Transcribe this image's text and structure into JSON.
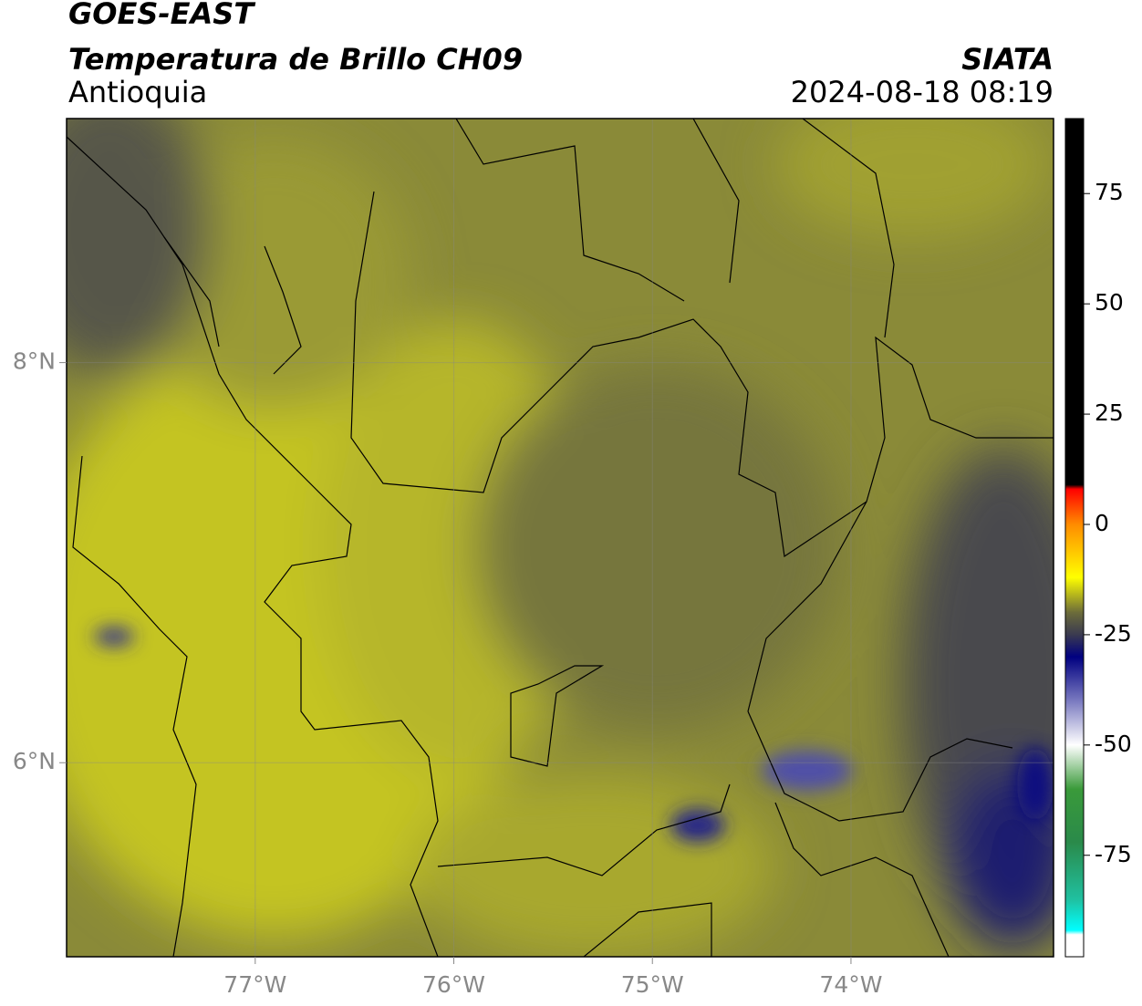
{
  "chart_data": {
    "type": "map",
    "title": "GOES-EAST",
    "subtitle": "Temperatura de Brillo CH09",
    "region": "Antioquia",
    "source": "SIATA",
    "timestamp": "2024-08-18 08:19",
    "xlim": [
      -77.95,
      -72.98
    ],
    "ylim": [
      5.03,
      9.22
    ],
    "xticks": [
      {
        "value": -77,
        "label": "77°W"
      },
      {
        "value": -76,
        "label": "76°W"
      },
      {
        "value": -75,
        "label": "75°W"
      },
      {
        "value": -74,
        "label": "74°W"
      }
    ],
    "yticks": [
      {
        "value": 6,
        "label": "6°N"
      },
      {
        "value": 8,
        "label": "8°N"
      }
    ],
    "grid": true,
    "clim": [
      -98,
      92
    ],
    "cticks": [
      75,
      50,
      25,
      0,
      -25,
      -50,
      -75
    ],
    "colormap": [
      {
        "value": 92,
        "color": "#000000"
      },
      {
        "value": 9,
        "color": "#000000"
      },
      {
        "value": 8,
        "color": "#ff0000"
      },
      {
        "value": 0,
        "color": "#ff8c00"
      },
      {
        "value": -12,
        "color": "#ffff00"
      },
      {
        "value": -20,
        "color": "#6b6b3a"
      },
      {
        "value": -25,
        "color": "#3a3a50"
      },
      {
        "value": -30,
        "color": "#000080"
      },
      {
        "value": -40,
        "color": "#7a7ac0"
      },
      {
        "value": -50,
        "color": "#ffffff"
      },
      {
        "value": -60,
        "color": "#3a9a3a"
      },
      {
        "value": -72,
        "color": "#2a8a4a"
      },
      {
        "value": -85,
        "color": "#20c0a0"
      },
      {
        "value": -92,
        "color": "#00ffff"
      },
      {
        "value": -93,
        "color": "#ffffff"
      },
      {
        "value": -98,
        "color": "#ffffff"
      }
    ]
  }
}
